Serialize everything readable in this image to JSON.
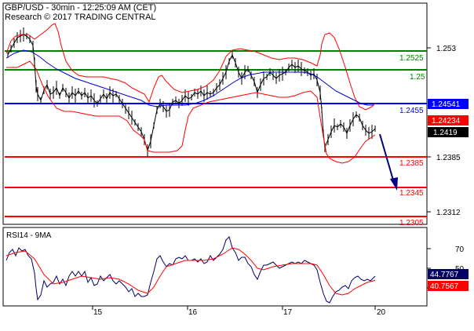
{
  "header": {
    "line1": "GBP/USD - 30min - 12:25:09 AM (CET)",
    "line2": "Research © 2017 TRADING CENTRAL"
  },
  "colors": {
    "price": "#000000",
    "bollinger": "#ff0000",
    "moving_average": "#0000cc",
    "support": "#ff0000",
    "resistance": "#008000",
    "pivot": "#0000ff",
    "current_price_box": "#000000",
    "support_box": "#ff0000",
    "rsi": "#000066",
    "rsi_ma": "#ff0000",
    "arrow": "#000080"
  },
  "chart_data": [
    {
      "type": "line",
      "title": "GBP/USD - 30min",
      "x_ticks": [
        "15",
        "16",
        "17",
        "20"
      ],
      "y_ticks": [
        1.2312,
        1.2385,
        1.2455,
        1.253
      ],
      "ylim": [
        1.2295,
        1.2565
      ],
      "levels": [
        {
          "label": "1.2525",
          "value": 1.2525,
          "kind": "resistance"
        },
        {
          "label": "1.25",
          "value": 1.25,
          "kind": "resistance"
        },
        {
          "label": "1.2455",
          "value": 1.2455,
          "kind": "pivot"
        },
        {
          "label": "1.2385",
          "value": 1.2385,
          "kind": "support"
        },
        {
          "label": "1.2345",
          "value": 1.2345,
          "kind": "support"
        },
        {
          "label": "1.2305",
          "value": 1.2305,
          "kind": "support"
        }
      ],
      "price_boxes": [
        {
          "label": "1.24541",
          "value": 1.24541,
          "kind": "pivot"
        },
        {
          "label": "1.24234",
          "value": 1.24234,
          "kind": "bollinger"
        },
        {
          "label": "1.2419",
          "value": 1.2419,
          "kind": "price"
        }
      ],
      "x": [
        0,
        2,
        4,
        6,
        8,
        10,
        12,
        14,
        16,
        18,
        20,
        22,
        24,
        26,
        28,
        30,
        32,
        34,
        36,
        38,
        40,
        42,
        44,
        46,
        48,
        50,
        52,
        54,
        56,
        58,
        60,
        62,
        64,
        66,
        68,
        70,
        72,
        74,
        76,
        78,
        80,
        82,
        84,
        86,
        88,
        90,
        92,
        94,
        96,
        98,
        100,
        102,
        104,
        106,
        108,
        110,
        112,
        114,
        116,
        118,
        120,
        122,
        124,
        126,
        128,
        130,
        132,
        134,
        136,
        138,
        140,
        142,
        144,
        146,
        148,
        150,
        152,
        154,
        156,
        158,
        160,
        162,
        164,
        166,
        168,
        170,
        172,
        174,
        176,
        178,
        180,
        182,
        184,
        186,
        188,
        190,
        192,
        194,
        196,
        198,
        200,
        202,
        204,
        206,
        208,
        210,
        212,
        214,
        216,
        218,
        220,
        222,
        224,
        226,
        228,
        230,
        232,
        234,
        236,
        238,
        240
      ],
      "series": [
        {
          "name": "Price",
          "values": [
            1.2525,
            1.2532,
            1.254,
            1.2545,
            1.2538,
            1.252,
            1.2495,
            1.247,
            1.2478,
            1.247,
            1.2462,
            1.2468,
            1.246,
            1.2465,
            1.2458,
            1.2462,
            1.2455,
            1.245,
            1.2458,
            1.2455,
            1.2452,
            1.2458,
            1.245,
            1.2448,
            1.2452,
            1.2445,
            1.244,
            1.2432,
            1.2428,
            1.2415,
            1.2405,
            1.2395,
            1.2388,
            1.242,
            1.244,
            1.245,
            1.2445,
            1.2452,
            1.2458,
            1.246,
            1.2455,
            1.2462,
            1.2468,
            1.2465,
            1.247,
            1.2468,
            1.2475,
            1.248,
            1.2495,
            1.251,
            1.2518,
            1.2512,
            1.2505,
            1.2498,
            1.2492,
            1.2488,
            1.248,
            1.2485,
            1.249,
            1.2495,
            1.249,
            1.2488,
            1.2495,
            1.25,
            1.2502,
            1.2505,
            1.25,
            1.2498,
            1.2492,
            1.2488,
            1.245,
            1.2405,
            1.2395,
            1.24,
            1.241,
            1.2415,
            1.242,
            1.2425,
            1.2428,
            1.242,
            1.2415,
            1.2425,
            1.2432,
            1.2428,
            1.242,
            1.2415,
            1.242,
            1.2419,
            1.2419,
            1.2419,
            1.2419,
            1.2419,
            1.2419,
            1.2419,
            1.2419,
            1.2419,
            1.2419,
            1.2419,
            1.2419,
            1.2419,
            1.2419,
            1.2419,
            1.2419,
            1.2419,
            1.2419,
            1.2419,
            1.2419,
            1.2419,
            1.2419,
            1.2419,
            1.2419,
            1.2419,
            1.2419,
            1.2419,
            1.2419,
            1.2419,
            1.2419,
            1.2419,
            1.2419,
            1.2419,
            1.2419
          ]
        }
      ]
    },
    {
      "type": "line",
      "title": "RSI14 - 9MA",
      "y_ticks": [
        30,
        50,
        70
      ],
      "ylim": [
        20,
        85
      ],
      "price_boxes": [
        {
          "label": "44.7767",
          "value": 44.7767,
          "kind": "rsi"
        },
        {
          "label": "40.7567",
          "value": 40.7567,
          "kind": "rsi_ma"
        }
      ]
    }
  ]
}
